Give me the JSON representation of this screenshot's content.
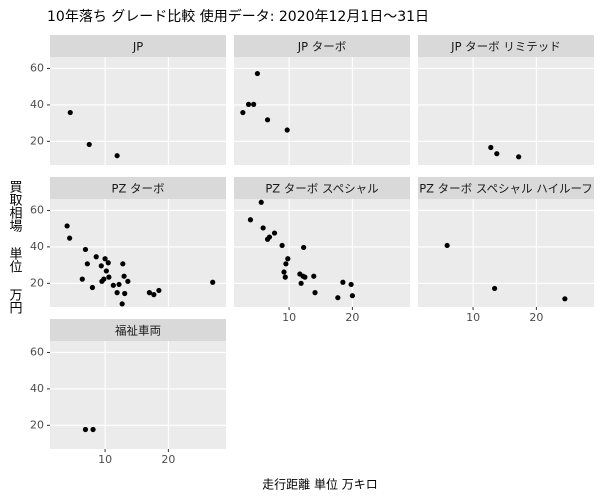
{
  "chart_data": {
    "type": "scatter",
    "title": "10年落ち グレード比較 使用データ: 2020年12月1日～31日",
    "x_label": "走行距離 単位 万キロ",
    "y_label": "買取相場 単位 万円",
    "xlim": [
      1.3,
      29.1
    ],
    "ylim": [
      7,
      66.3
    ],
    "xticks": [
      10,
      20
    ],
    "yticks": [
      20,
      40,
      60
    ],
    "grid": true,
    "color": "#000000",
    "panels": [
      {
        "name": "JP",
        "x": [
          4.5,
          7.5,
          11.9
        ],
        "y": [
          35.8,
          18.3,
          12.1
        ]
      },
      {
        "name": "JP  ターボ",
        "x": [
          2.7,
          3.6,
          4.4,
          5.0,
          6.6,
          9.7
        ],
        "y": [
          35.8,
          40.3,
          40.3,
          57.2,
          31.8,
          26.2
        ]
      },
      {
        "name": "JP  ターボ  リミテッド",
        "x": [
          12.8,
          13.75,
          17.2
        ],
        "y": [
          16.6,
          13.2,
          11.5
        ]
      },
      {
        "name": "PZ  ターボ",
        "x": [
          4.0,
          4.4,
          6.9,
          7.2,
          6.4,
          8.0,
          8.6,
          9.4,
          9.5,
          10.0,
          10.2,
          9.8,
          10.5,
          10.6,
          11.3,
          11.9,
          12.2,
          12.8,
          13.0,
          12.7,
          13.1,
          13.6,
          17.0,
          17.7,
          18.5,
          27.0
        ],
        "y": [
          51.5,
          44.8,
          38.6,
          30.7,
          22.3,
          17.7,
          34.6,
          29.6,
          21.1,
          33.5,
          26.8,
          22.3,
          31.3,
          23.4,
          18.9,
          14.9,
          19.4,
          30.7,
          23.9,
          8.7,
          14.4,
          21.1,
          14.9,
          13.8,
          16.1,
          20.6
        ]
      },
      {
        "name": "PZ  ターボ  スペシャル",
        "x": [
          3.9,
          5.6,
          5.9,
          6.6,
          6.9,
          7.7,
          8.9,
          9.2,
          9.5,
          9.4,
          9.8,
          11.7,
          11.9,
          12.2,
          12.3,
          12.5,
          13.9,
          14.1,
          17.7,
          18.5,
          19.8,
          20.0
        ],
        "y": [
          54.9,
          64.5,
          50.4,
          44.2,
          45.4,
          47.6,
          40.8,
          26.2,
          30.7,
          23.4,
          33.5,
          25.1,
          20.0,
          23.9,
          39.7,
          23.4,
          23.9,
          14.9,
          12.1,
          20.6,
          19.4,
          13.2
        ]
      },
      {
        "name": "PZ  ターボ  スペシャル  ハイルーフ",
        "x": [
          5.9,
          13.4,
          24.5
        ],
        "y": [
          40.8,
          17.2,
          11.5
        ]
      },
      {
        "name": "福祉車両",
        "x": [
          6.9,
          8.1
        ],
        "y": [
          17.7,
          17.7
        ]
      }
    ]
  }
}
